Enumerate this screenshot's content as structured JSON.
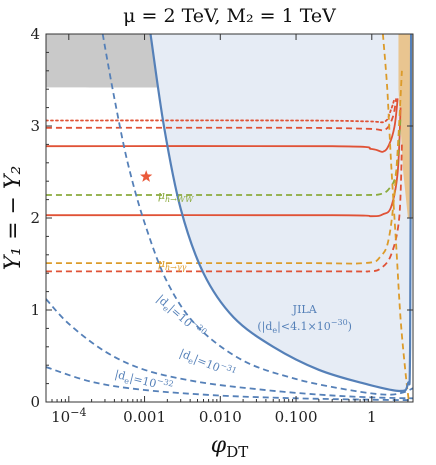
{
  "chart_data": {
    "type": "line",
    "title": "μ = 2 TeV,  M₂ = 1 TeV",
    "xlabel": "φ",
    "xlabel_sub": "DT",
    "ylabel": "Y₁ = − Y₂",
    "x_scale": "log",
    "xlim": [
      5e-05,
      3.5
    ],
    "ylim": [
      0,
      4
    ],
    "x_ticks": [
      {
        "value": 0.0001,
        "label": "10",
        "sup": "−4"
      },
      {
        "value": 0.001,
        "label": "0.001",
        "sup": ""
      },
      {
        "value": 0.01,
        "label": "0.010",
        "sup": ""
      },
      {
        "value": 0.1,
        "label": "0.100",
        "sup": ""
      },
      {
        "value": 1,
        "label": "1",
        "sup": ""
      }
    ],
    "y_ticks": [
      0,
      1,
      2,
      3,
      4
    ],
    "grid": false,
    "colors": {
      "red": "#e05236",
      "blue": "#5580b8",
      "green": "#8aaa3c",
      "orange": "#dc9b2a",
      "excluded_gray": "#c9c9c9",
      "jila_fill": "#e6ecf5",
      "orange_fill": "#e9c590",
      "star": "#ea5a3a"
    },
    "regions": [
      {
        "name": "excluded-top",
        "color": "#c9c9c9",
        "boundary": [
          [
            5e-05,
            3.42
          ],
          [
            0.03,
            3.42
          ],
          [
            0.3,
            3.45
          ],
          [
            0.8,
            3.55
          ],
          [
            1.3,
            3.72
          ],
          [
            1.55,
            4.0
          ]
        ]
      },
      {
        "name": "jila-excluded",
        "color": "#e6ecf5",
        "boundary": [
          [
            0.0012,
            4.0
          ],
          [
            0.0018,
            3.0
          ],
          [
            0.003,
            2.1
          ],
          [
            0.006,
            1.4
          ],
          [
            0.015,
            0.92
          ],
          [
            0.05,
            0.6
          ],
          [
            0.2,
            0.35
          ],
          [
            0.8,
            0.2
          ],
          [
            2.3,
            0.12
          ],
          [
            3.0,
            0.2
          ],
          [
            3.2,
            0.6
          ],
          [
            3.3,
            4.0
          ]
        ]
      },
      {
        "name": "orange-band",
        "color": "#e9c590",
        "x_range": [
          2.1,
          3.5
        ]
      }
    ],
    "series": [
      {
        "group": "red",
        "style": "dotted",
        "points": [
          [
            5e-05,
            3.06
          ],
          [
            0.1,
            3.06
          ],
          [
            0.9,
            3.05
          ],
          [
            1.5,
            3.05
          ],
          [
            1.8,
            3.18
          ],
          [
            2.0,
            3.3
          ]
        ]
      },
      {
        "group": "red",
        "style": "dashed",
        "points": [
          [
            5e-05,
            2.98
          ],
          [
            0.1,
            2.98
          ],
          [
            0.9,
            2.97
          ],
          [
            1.5,
            2.96
          ],
          [
            1.9,
            3.1
          ],
          [
            2.1,
            3.3
          ]
        ]
      },
      {
        "group": "red",
        "style": "solid",
        "points": [
          [
            5e-05,
            2.78
          ],
          [
            0.3,
            2.78
          ],
          [
            1.0,
            2.75
          ],
          [
            1.4,
            2.72
          ],
          [
            1.7,
            2.8
          ],
          [
            2.0,
            3.0
          ],
          [
            2.2,
            3.3
          ]
        ]
      },
      {
        "group": "red",
        "style": "solid",
        "points": [
          [
            5e-05,
            2.03
          ],
          [
            0.3,
            2.03
          ],
          [
            1.0,
            2.02
          ],
          [
            1.4,
            2.04
          ],
          [
            1.8,
            2.12
          ],
          [
            2.2,
            2.5
          ],
          [
            2.4,
            3.2
          ]
        ]
      },
      {
        "group": "red",
        "style": "dashed",
        "points": [
          [
            5e-05,
            1.42
          ],
          [
            0.3,
            1.42
          ],
          [
            0.9,
            1.42
          ],
          [
            1.3,
            1.45
          ],
          [
            1.8,
            1.6
          ],
          [
            2.3,
            2.0
          ],
          [
            2.5,
            2.8
          ]
        ]
      },
      {
        "group": "green",
        "style": "dashed",
        "points": [
          [
            5e-05,
            2.25
          ],
          [
            0.1,
            2.25
          ],
          [
            0.8,
            2.25
          ],
          [
            1.3,
            2.26
          ],
          [
            1.7,
            2.32
          ],
          [
            2.1,
            2.5
          ],
          [
            2.4,
            3.1
          ]
        ]
      },
      {
        "group": "orange",
        "style": "dashed",
        "points": [
          [
            5e-05,
            1.51
          ],
          [
            0.1,
            1.51
          ],
          [
            0.8,
            1.51
          ],
          [
            1.3,
            1.58
          ],
          [
            1.7,
            1.8
          ],
          [
            2.1,
            2.5
          ],
          [
            2.5,
            3.6
          ]
        ]
      },
      {
        "group": "orange",
        "style": "dashed",
        "points": [
          [
            1.4,
            4.0
          ],
          [
            1.6,
            3.4
          ],
          [
            1.8,
            2.6
          ],
          [
            2.1,
            1.7
          ],
          [
            2.4,
            0.9
          ],
          [
            2.8,
            0.3
          ],
          [
            3.1,
            0.0
          ]
        ]
      },
      {
        "group": "blue",
        "style": "solid",
        "name": "JILA",
        "points": [
          [
            0.0012,
            4.0
          ],
          [
            0.0018,
            3.0
          ],
          [
            0.003,
            2.1
          ],
          [
            0.006,
            1.4
          ],
          [
            0.015,
            0.92
          ],
          [
            0.05,
            0.6
          ],
          [
            0.2,
            0.35
          ],
          [
            0.8,
            0.2
          ],
          [
            2.3,
            0.12
          ],
          [
            3.0,
            0.2
          ],
          [
            3.2,
            0.6
          ],
          [
            3.3,
            4.0
          ]
        ]
      },
      {
        "group": "blue",
        "style": "dashed",
        "points": [
          [
            0.00028,
            4.0
          ],
          [
            0.0004,
            3.3
          ],
          [
            0.0006,
            2.6
          ],
          [
            0.001,
            1.95
          ],
          [
            0.002,
            1.3
          ],
          [
            0.005,
            0.82
          ],
          [
            0.02,
            0.45
          ],
          [
            0.1,
            0.25
          ],
          [
            0.5,
            0.13
          ],
          [
            1.5,
            0.08
          ],
          [
            2.5,
            0.1
          ],
          [
            3.5,
            0.15
          ]
        ]
      },
      {
        "group": "blue",
        "style": "dashed",
        "points": [
          [
            5e-05,
            1.12
          ],
          [
            0.0001,
            0.85
          ],
          [
            0.0003,
            0.55
          ],
          [
            0.001,
            0.35
          ],
          [
            0.005,
            0.22
          ],
          [
            0.03,
            0.14
          ],
          [
            0.2,
            0.08
          ],
          [
            1.0,
            0.05
          ],
          [
            3.5,
            0.04
          ]
        ]
      },
      {
        "group": "blue",
        "style": "dashed",
        "points": [
          [
            5e-05,
            0.38
          ],
          [
            0.0002,
            0.22
          ],
          [
            0.001,
            0.13
          ],
          [
            0.01,
            0.07
          ],
          [
            0.1,
            0.04
          ],
          [
            1.0,
            0.025
          ],
          [
            3.5,
            0.02
          ]
        ]
      }
    ],
    "marker": {
      "shape": "star",
      "x": 0.00105,
      "y": 2.45
    },
    "annotations": {
      "h_ww": {
        "text": "μ",
        "sub": "h→WW",
        "x": 0.0015,
        "y": 2.25
      },
      "h_gg": {
        "text": "μ",
        "sub": "h→γγ",
        "x": 0.0015,
        "y": 1.51
      },
      "jila_title": {
        "text": "JILA",
        "x": 0.13,
        "y": 0.97
      },
      "jila_limit": {
        "text": "(|d",
        "sub": "e",
        "rest": "|<4.1×10",
        "sup": "−30",
        "tail": ")",
        "x": 0.13,
        "y": 0.78
      },
      "de30": {
        "text": "|d",
        "sub": "e",
        "rest": "|=10",
        "sup": "−30",
        "x": 0.0028,
        "y": 0.9,
        "angle": 41
      },
      "de31": {
        "text": "|d",
        "sub": "e",
        "rest": "|=10",
        "sup": "−31",
        "x": 0.0065,
        "y": 0.38,
        "angle": 22
      },
      "de32": {
        "text": "|d",
        "sub": "e",
        "rest": "|=10",
        "sup": "−32",
        "x": 0.00095,
        "y": 0.19,
        "angle": 14
      }
    }
  }
}
